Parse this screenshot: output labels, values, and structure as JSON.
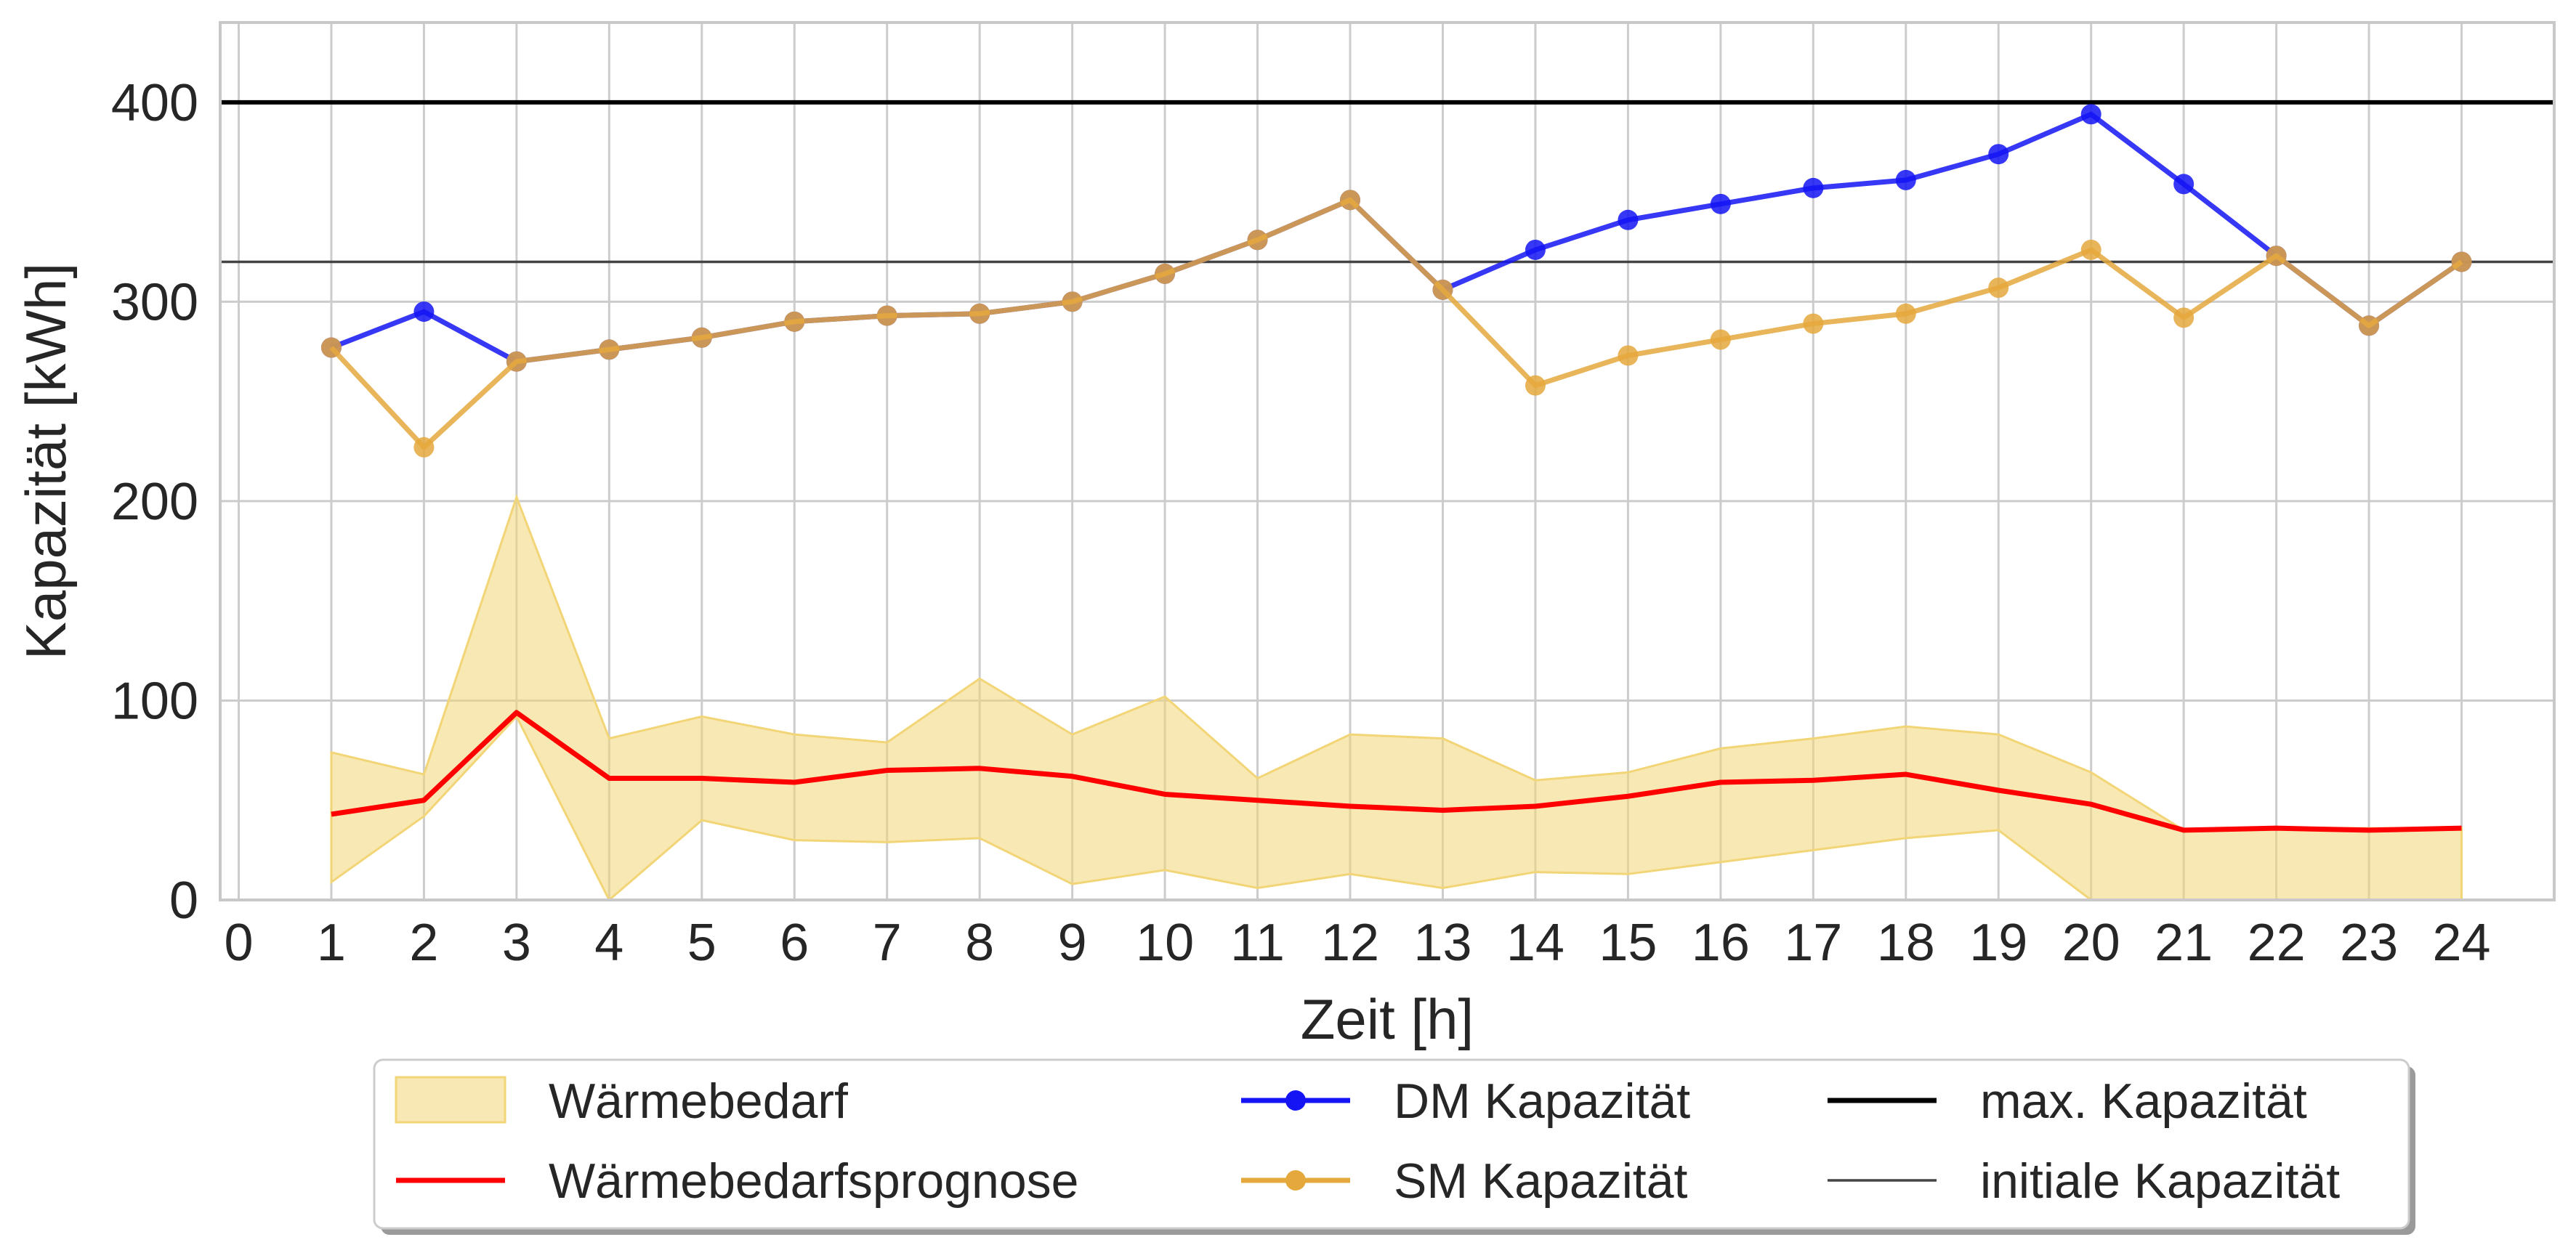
{
  "chart_data": {
    "type": "line",
    "xlabel": "Zeit [h]",
    "ylabel": "Kapazität [kWh]",
    "xlim": [
      -0.2,
      25.0
    ],
    "ylim": [
      0,
      440
    ],
    "x_ticks": [
      0,
      1,
      2,
      3,
      4,
      5,
      6,
      7,
      8,
      9,
      10,
      11,
      12,
      13,
      14,
      15,
      16,
      17,
      18,
      19,
      20,
      21,
      22,
      23,
      24
    ],
    "y_ticks": [
      0,
      100,
      200,
      300,
      400
    ],
    "grid": true,
    "x": [
      1,
      2,
      3,
      4,
      5,
      6,
      7,
      8,
      9,
      10,
      11,
      12,
      13,
      14,
      15,
      16,
      17,
      18,
      19,
      20,
      21,
      22,
      23,
      24
    ],
    "band": {
      "name": "Wärmebedarf",
      "color": "#f2d577",
      "lower": [
        9,
        42,
        92,
        -8,
        40,
        30,
        29,
        31,
        8,
        15,
        6,
        13,
        6,
        14,
        13,
        19,
        25,
        31,
        35,
        0,
        0,
        0,
        0,
        0
      ],
      "upper": [
        74,
        63,
        202,
        81,
        92,
        83,
        79,
        111,
        83,
        102,
        61,
        83,
        81,
        60,
        64,
        76,
        81,
        87,
        83,
        64,
        35,
        36,
        36,
        36
      ]
    },
    "series": [
      {
        "name": "Wärmebedarfsprognose",
        "color": "#ff0000",
        "marker": false,
        "values": [
          43,
          50,
          94,
          61,
          61,
          59,
          65,
          66,
          62,
          53,
          50,
          47,
          45,
          47,
          52,
          59,
          60,
          63,
          55,
          48,
          35,
          36,
          35,
          36
        ]
      },
      {
        "name": "DM Kapazität",
        "color": "#1414f5",
        "marker": true,
        "values": [
          277,
          295,
          270,
          276,
          282,
          290,
          293,
          294,
          300,
          314,
          331,
          351,
          306,
          326,
          341,
          349,
          357,
          361,
          374,
          394,
          359,
          323,
          288,
          320
        ]
      },
      {
        "name": "SM Kapazität",
        "color": "#e5a83d",
        "marker": true,
        "values": [
          277,
          227,
          270,
          276,
          282,
          290,
          293,
          294,
          300,
          314,
          331,
          351,
          306,
          258,
          273,
          281,
          289,
          294,
          307,
          326,
          292,
          323,
          288,
          320
        ]
      }
    ],
    "hlines": [
      {
        "name": "max. Kapazität",
        "value": 400,
        "color": "#000000"
      },
      {
        "name": "initiale Kapazität",
        "value": 320,
        "color": "#444444"
      }
    ],
    "legend_position": "bottom-center",
    "legend": [
      {
        "label": "Wärmebedarf",
        "kind": "band",
        "color": "#f2d577"
      },
      {
        "label": "Wärmebedarfsprognose",
        "kind": "line",
        "color": "#ff0000"
      },
      {
        "label": "DM Kapazität",
        "kind": "marker-line",
        "color": "#1414f5"
      },
      {
        "label": "SM Kapazität",
        "kind": "marker-line",
        "color": "#e5a83d"
      },
      {
        "label": "max. Kapazität",
        "kind": "line",
        "color": "#000000"
      },
      {
        "label": "initiale Kapazität",
        "kind": "thin-line",
        "color": "#444444"
      }
    ]
  }
}
